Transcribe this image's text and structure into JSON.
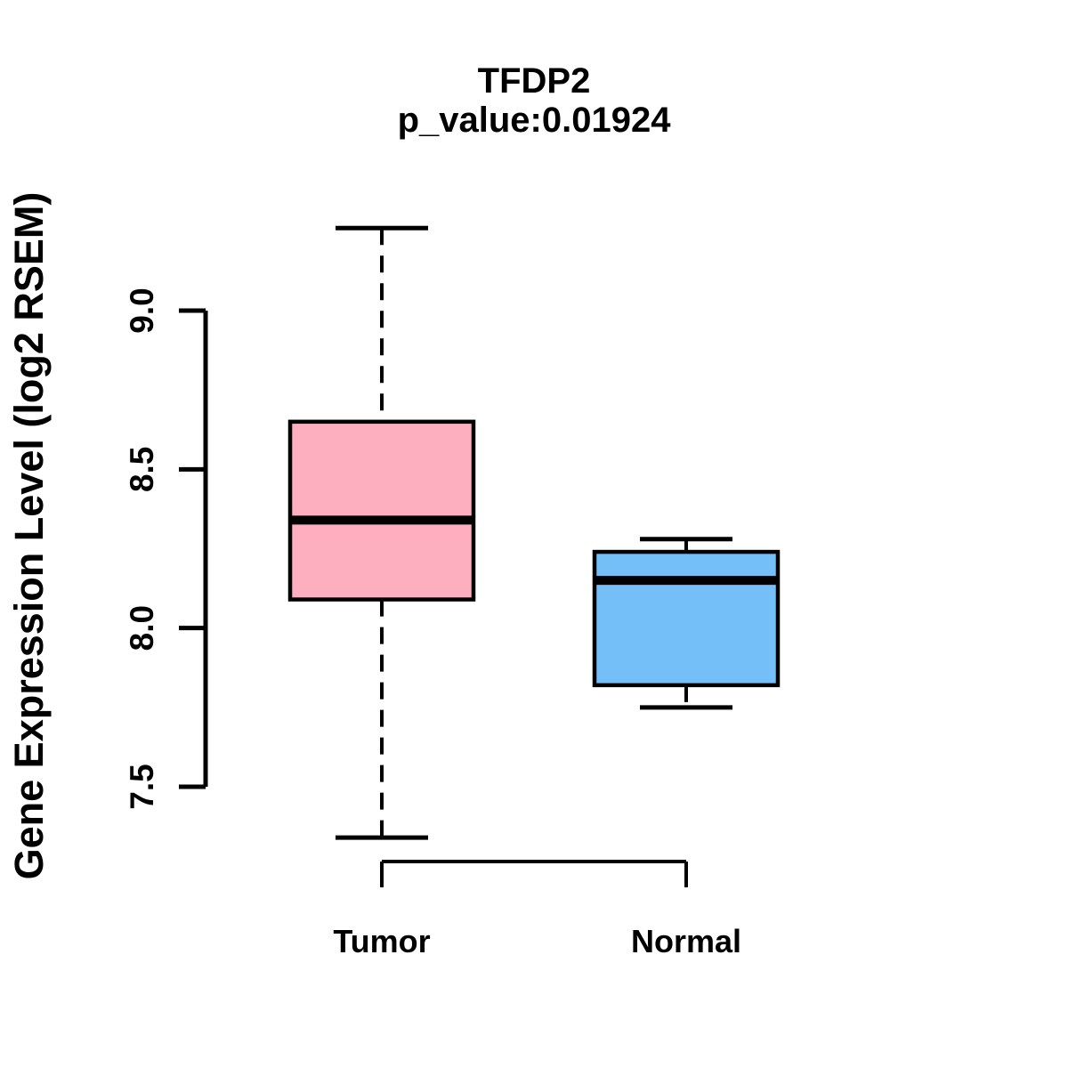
{
  "chart_data": {
    "type": "box",
    "title": "TFDP2",
    "subtitle": "p_value:0.01924",
    "ylabel": "Gene Expression Level (log2 RSEM)",
    "categories": [
      "Tumor",
      "Normal"
    ],
    "yticks": [
      {
        "label": "9.0",
        "value": 9.0
      },
      {
        "label": "8.5",
        "value": 8.5
      },
      {
        "label": "8.0",
        "value": 8.0
      },
      {
        "label": "7.5",
        "value": 7.5
      }
    ],
    "ylim": [
      7.3,
      9.3
    ],
    "grid": false,
    "legend": "none",
    "series": [
      {
        "name": "Tumor",
        "fill": "#FDAEBF",
        "whisker_low": 7.34,
        "q1": 8.09,
        "median": 8.34,
        "q3": 8.65,
        "whisker_high": 9.26
      },
      {
        "name": "Normal",
        "fill": "#74BFF8",
        "whisker_low": 7.75,
        "q1": 7.82,
        "median": 8.15,
        "q3": 8.24,
        "whisker_high": 8.28
      }
    ],
    "colors": {
      "stroke": "#000000",
      "background": "#FFFFFF"
    }
  }
}
